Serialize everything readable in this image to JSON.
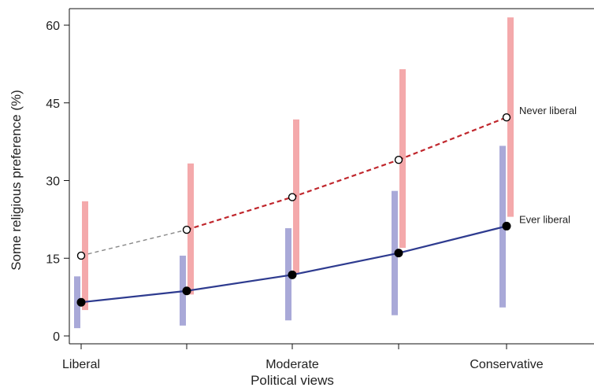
{
  "chart_data": {
    "type": "line",
    "title": "",
    "xlabel": "Political views",
    "ylabel": "Some religious preference (%)",
    "ylim": [
      0,
      60
    ],
    "yticks": [
      0,
      15,
      30,
      45,
      60
    ],
    "x": [
      1,
      2,
      3,
      4,
      5
    ],
    "xtick_labels": [
      "Liberal",
      "",
      "Moderate",
      "",
      "Conservative"
    ],
    "grid": false,
    "series": [
      {
        "name": "Never liberal",
        "color": "#c0272d",
        "ci_color": "#f4a9ab",
        "line_style": "dashed",
        "marker": "open-circle",
        "first_segment_color": "#888888",
        "values": [
          15.5,
          20.5,
          26.8,
          34.0,
          42.2
        ],
        "ci_low": [
          5.0,
          8.0,
          12.0,
          17.0,
          23.0
        ],
        "ci_high": [
          26.0,
          33.3,
          41.8,
          51.5,
          61.5
        ]
      },
      {
        "name": "Ever liberal",
        "color": "#2e3b8f",
        "ci_color": "#a9a9d8",
        "line_style": "solid",
        "marker": "filled-circle",
        "values": [
          6.5,
          8.7,
          11.8,
          16.0,
          21.2
        ],
        "ci_low": [
          1.5,
          2.0,
          3.0,
          4.0,
          5.5
        ],
        "ci_high": [
          11.5,
          15.5,
          20.8,
          28.0,
          36.7
        ]
      }
    ]
  }
}
